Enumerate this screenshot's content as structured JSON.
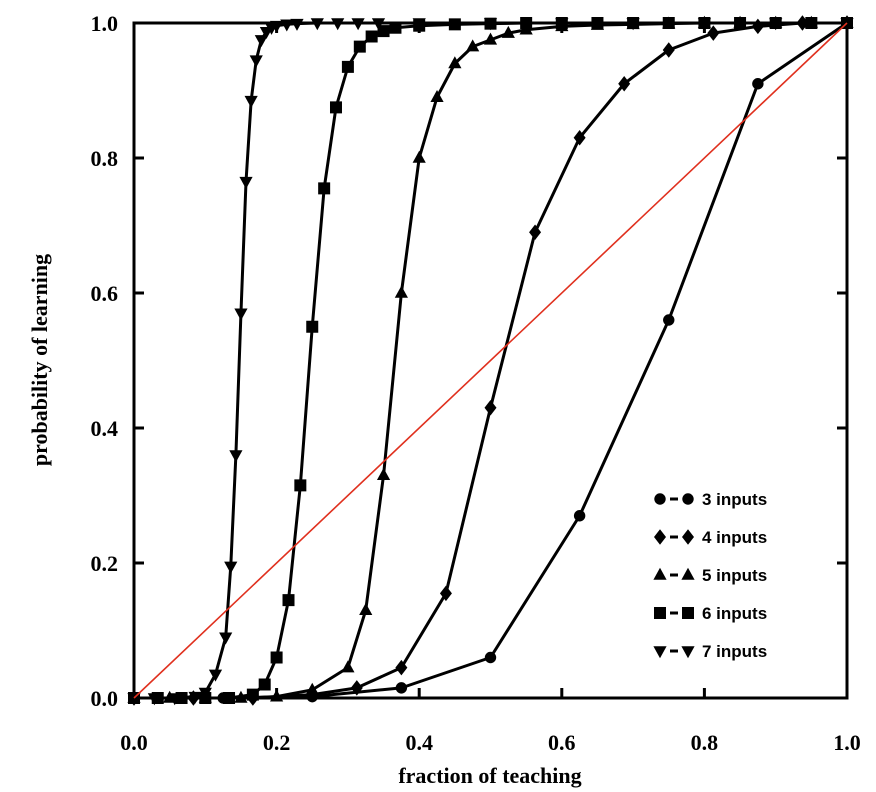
{
  "chart_data": {
    "type": "line",
    "xlabel": "fraction of teaching",
    "ylabel": "probability of learning",
    "xlim": [
      0,
      1
    ],
    "ylim": [
      0,
      1
    ],
    "x_ticks": [
      "0.0",
      "0.2",
      "0.4",
      "0.6",
      "0.8",
      "1.0"
    ],
    "y_ticks": [
      "0.0",
      "0.2",
      "0.4",
      "0.6",
      "0.8",
      "1.0"
    ],
    "grid": false,
    "legend_position": "bottom-right",
    "series": [
      {
        "name": "3 inputs",
        "marker": "circle",
        "x": [
          0.0,
          0.125,
          0.25,
          0.375,
          0.5,
          0.625,
          0.75,
          0.875,
          1.0
        ],
        "y": [
          0.0,
          0.0,
          0.002,
          0.015,
          0.06,
          0.27,
          0.56,
          0.91,
          1.0
        ]
      },
      {
        "name": "4 inputs",
        "marker": "diamond",
        "x": [
          0.0,
          0.0833,
          0.1667,
          0.25,
          0.3125,
          0.375,
          0.4375,
          0.5,
          0.5625,
          0.625,
          0.6875,
          0.75,
          0.8125,
          0.875,
          0.9375,
          1.0
        ],
        "y": [
          0.0,
          0.0,
          0.0,
          0.005,
          0.015,
          0.045,
          0.155,
          0.43,
          0.69,
          0.83,
          0.91,
          0.96,
          0.985,
          0.995,
          1.0,
          1.0
        ],
        "note": ""
      },
      {
        "name": "5 inputs",
        "marker": "triangle-up",
        "x": [
          0.0,
          0.05,
          0.1,
          0.15,
          0.2,
          0.25,
          0.3,
          0.325,
          0.35,
          0.375,
          0.4,
          0.425,
          0.45,
          0.475,
          0.5,
          0.525,
          0.55,
          0.6,
          0.65,
          0.7,
          0.75,
          0.8,
          0.85,
          0.9,
          0.95,
          1.0
        ],
        "y": [
          0.0,
          0.0,
          0.0,
          0.0,
          0.002,
          0.012,
          0.045,
          0.13,
          0.33,
          0.6,
          0.8,
          0.89,
          0.94,
          0.965,
          0.975,
          0.985,
          0.99,
          0.995,
          0.997,
          0.998,
          0.999,
          1.0,
          1.0,
          1.0,
          1.0,
          1.0
        ]
      },
      {
        "name": "6 inputs",
        "marker": "square",
        "x": [
          0.0,
          0.0333,
          0.0667,
          0.1,
          0.1333,
          0.1667,
          0.1833,
          0.2,
          0.2167,
          0.2333,
          0.25,
          0.2667,
          0.2833,
          0.3,
          0.3167,
          0.3333,
          0.35,
          0.3667,
          0.4,
          0.45,
          0.5,
          0.55,
          0.6,
          0.65,
          0.7,
          0.75,
          0.8,
          0.85,
          0.9,
          0.95,
          1.0
        ],
        "y": [
          0.0,
          0.0,
          0.0,
          0.0,
          0.0,
          0.005,
          0.02,
          0.06,
          0.145,
          0.315,
          0.55,
          0.755,
          0.875,
          0.935,
          0.965,
          0.98,
          0.988,
          0.993,
          0.996,
          0.998,
          0.999,
          1.0,
          1.0,
          1.0,
          1.0,
          1.0,
          1.0,
          1.0,
          1.0,
          1.0,
          1.0
        ]
      },
      {
        "name": "7 inputs",
        "marker": "triangle-down",
        "x": [
          0.0,
          0.0286,
          0.0571,
          0.0857,
          0.1,
          0.1143,
          0.1286,
          0.1357,
          0.1429,
          0.15,
          0.1571,
          0.1643,
          0.1714,
          0.1786,
          0.1857,
          0.1929,
          0.2,
          0.2143,
          0.2286,
          0.2571,
          0.2857,
          0.3143,
          0.3429,
          0.4,
          0.5,
          0.6,
          0.7,
          0.8,
          0.9,
          1.0
        ],
        "y": [
          0.0,
          0.0,
          0.0,
          0.002,
          0.008,
          0.035,
          0.09,
          0.195,
          0.36,
          0.57,
          0.765,
          0.885,
          0.945,
          0.975,
          0.987,
          0.993,
          0.996,
          0.998,
          0.999,
          1.0,
          1.0,
          1.0,
          1.0,
          1.0,
          1.0,
          1.0,
          1.0,
          1.0,
          1.0,
          1.0
        ]
      }
    ],
    "reference_line": {
      "color": "#e0301e",
      "x": [
        0.0,
        1.0
      ],
      "y": [
        0.0,
        1.0
      ]
    },
    "line_color": "#000000"
  }
}
